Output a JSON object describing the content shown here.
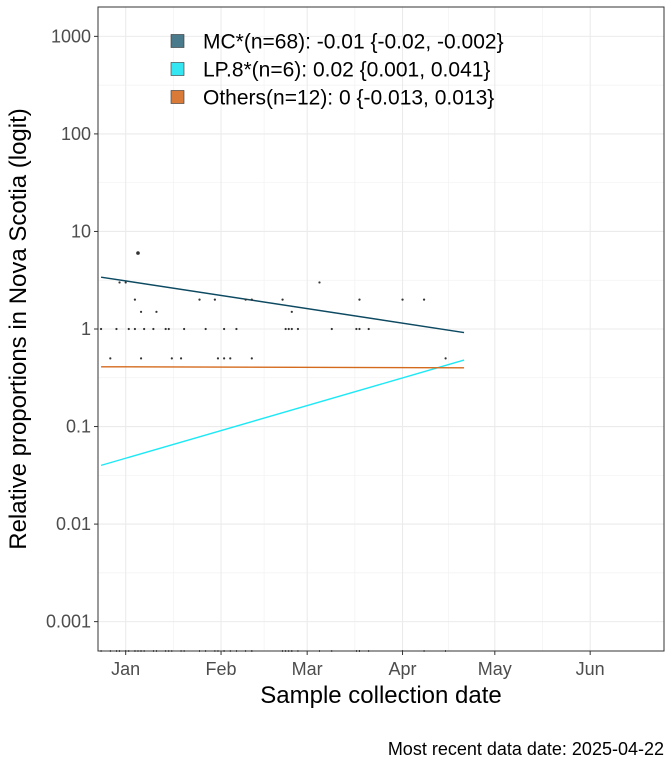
{
  "chart_data": {
    "type": "scatter",
    "xlabel": "Sample collection date",
    "ylabel": "Relative proportions in Nova Scotia (logit)",
    "caption": "Most recent data date: 2025-04-22",
    "x_scale": "date",
    "y_scale": "logit",
    "xlim": [
      "2024-12-23",
      "2025-06-25"
    ],
    "ylim": [
      0.0005,
      2000
    ],
    "grid": true,
    "legend_position": "top-left",
    "x_ticks": [
      {
        "value": "2025-01-01",
        "label": "Jan"
      },
      {
        "value": "2025-02-01",
        "label": "Feb"
      },
      {
        "value": "2025-03-01",
        "label": "Mar"
      },
      {
        "value": "2025-04-01",
        "label": "Apr"
      },
      {
        "value": "2025-05-01",
        "label": "May"
      },
      {
        "value": "2025-06-01",
        "label": "Jun"
      }
    ],
    "y_ticks": [
      {
        "value": 0.001,
        "label": "0.001"
      },
      {
        "value": 0.01,
        "label": "0.01"
      },
      {
        "value": 0.1,
        "label": "0.1"
      },
      {
        "value": 1,
        "label": "1"
      },
      {
        "value": 10,
        "label": "10"
      },
      {
        "value": 100,
        "label": "100"
      },
      {
        "value": 1000,
        "label": "1000"
      }
    ],
    "series": [
      {
        "name": "MC*(n=68): -0.01 {-0.02, -0.002}",
        "color": "#4a7b8c",
        "line_color": "#0d4a62",
        "fit": {
          "x": [
            "2024-12-24",
            "2025-04-21"
          ],
          "y": [
            3.4,
            0.92
          ]
        }
      },
      {
        "name": "LP.8*(n=6): 0.02 {0.001, 0.041}",
        "color": "#33e6f2",
        "line_color": "#1de8f5",
        "fit": {
          "x": [
            "2024-12-24",
            "2025-04-21"
          ],
          "y": [
            0.04,
            0.48
          ]
        }
      },
      {
        "name": "Others(n=12): 0 {-0.013, 0.013}",
        "color": "#d97a38",
        "line_color": "#d46a1c",
        "fit": {
          "x": [
            "2024-12-24",
            "2025-04-21"
          ],
          "y": [
            0.41,
            0.4
          ]
        }
      }
    ],
    "points": [
      {
        "x": "2024-12-24",
        "y": 1
      },
      {
        "x": "2024-12-27",
        "y": 0.5
      },
      {
        "x": "2024-12-29",
        "y": 1
      },
      {
        "x": "2024-12-30",
        "y": 3
      },
      {
        "x": "2025-01-01",
        "y": 3
      },
      {
        "x": "2025-01-02",
        "y": 1
      },
      {
        "x": "2025-01-04",
        "y": 2
      },
      {
        "x": "2025-01-04",
        "y": 1
      },
      {
        "x": "2025-01-05",
        "y": 6
      },
      {
        "x": "2025-01-06",
        "y": 1.5
      },
      {
        "x": "2025-01-06",
        "y": 0.5
      },
      {
        "x": "2025-01-07",
        "y": 1
      },
      {
        "x": "2025-01-10",
        "y": 1
      },
      {
        "x": "2025-01-11",
        "y": 1.5
      },
      {
        "x": "2025-01-14",
        "y": 1
      },
      {
        "x": "2025-01-15",
        "y": 1
      },
      {
        "x": "2025-01-16",
        "y": 0.5
      },
      {
        "x": "2025-01-19",
        "y": 0.5
      },
      {
        "x": "2025-01-20",
        "y": 1
      },
      {
        "x": "2025-01-25",
        "y": 2
      },
      {
        "x": "2025-01-27",
        "y": 1
      },
      {
        "x": "2025-01-30",
        "y": 2
      },
      {
        "x": "2025-01-31",
        "y": 0.5
      },
      {
        "x": "2025-02-02",
        "y": 1
      },
      {
        "x": "2025-02-02",
        "y": 0.5
      },
      {
        "x": "2025-02-04",
        "y": 0.5
      },
      {
        "x": "2025-02-06",
        "y": 1
      },
      {
        "x": "2025-02-09",
        "y": 2
      },
      {
        "x": "2025-02-11",
        "y": 2
      },
      {
        "x": "2025-02-11",
        "y": 0.5
      },
      {
        "x": "2025-02-21",
        "y": 2
      },
      {
        "x": "2025-02-22",
        "y": 1
      },
      {
        "x": "2025-02-23",
        "y": 1
      },
      {
        "x": "2025-02-24",
        "y": 1.5
      },
      {
        "x": "2025-02-24",
        "y": 1
      },
      {
        "x": "2025-02-26",
        "y": 1
      },
      {
        "x": "2025-03-05",
        "y": 3
      },
      {
        "x": "2025-03-09",
        "y": 1
      },
      {
        "x": "2025-03-17",
        "y": 1
      },
      {
        "x": "2025-03-18",
        "y": 2
      },
      {
        "x": "2025-03-18",
        "y": 1
      },
      {
        "x": "2025-03-21",
        "y": 1
      },
      {
        "x": "2025-04-01",
        "y": 2
      },
      {
        "x": "2025-04-08",
        "y": 2
      },
      {
        "x": "2025-04-15",
        "y": 0.5
      }
    ]
  }
}
